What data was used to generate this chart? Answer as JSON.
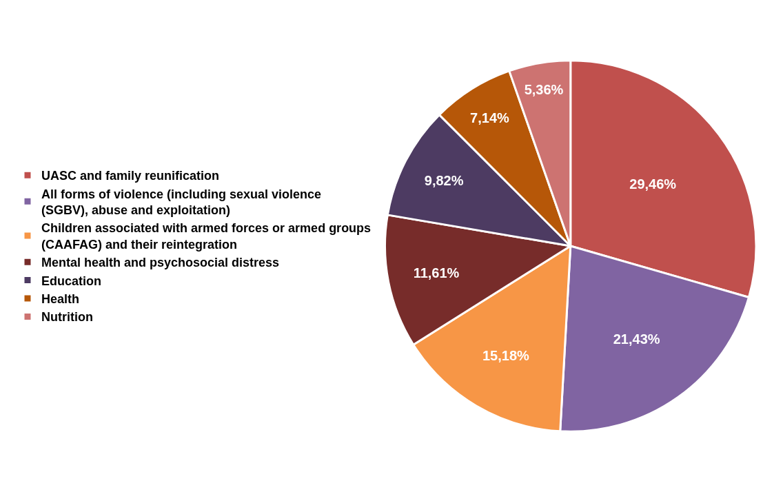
{
  "chart_data": {
    "type": "pie",
    "categories": [
      "UASC and family reunification",
      "All forms of violence (including sexual violence (SGBV), abuse and exploitation)",
      "Children associated with armed forces or armed groups (CAAFAG) and their reintegration",
      "Mental health and psychosocial distress",
      "Education",
      "Health",
      "Nutrition"
    ],
    "values": [
      29.46,
      21.43,
      15.18,
      11.61,
      9.82,
      7.14,
      5.36
    ],
    "value_labels": [
      "29,46%",
      "21,43%",
      "15,18%",
      "11,61%",
      "9,82%",
      "7,14%",
      "5,36%"
    ],
    "colors": [
      "#c0504d",
      "#8064a2",
      "#f79646",
      "#772c2a",
      "#4d3b62",
      "#b65708",
      "#cd7371"
    ],
    "legend": "left"
  }
}
